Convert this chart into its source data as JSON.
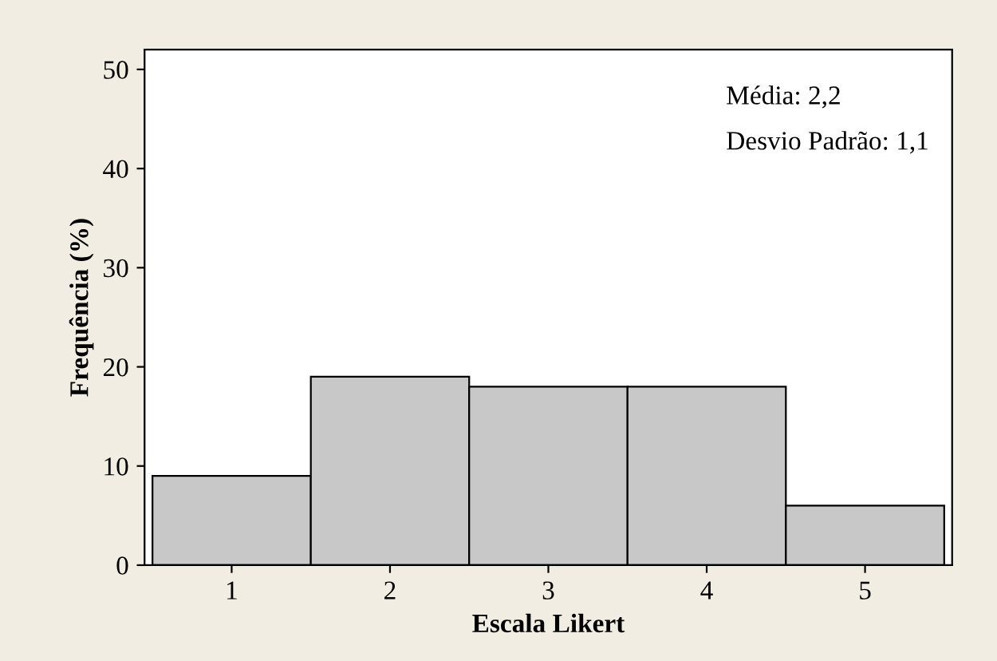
{
  "chart_data": {
    "type": "bar",
    "xlabel": "Escala Likert",
    "ylabel": "Frequência (%)",
    "categories": [
      "1",
      "2",
      "3",
      "4",
      "5"
    ],
    "values": [
      9,
      19,
      18,
      18,
      6
    ],
    "color": "#c8c8c8",
    "ylim": [
      0,
      52
    ],
    "yticks": [
      0,
      10,
      20,
      30,
      40,
      50
    ],
    "grid": false,
    "legend": false,
    "annotations": [
      "Média: 2,2",
      "Desvio Padrão: 1,1"
    ]
  }
}
